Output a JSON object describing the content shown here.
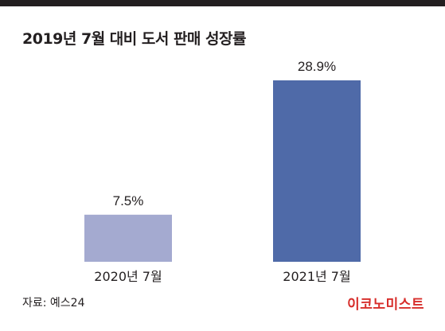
{
  "title": "2019년 7월 대비 도서 판매 성장률",
  "source": "자료: 예스24",
  "logo": "이코노미스트",
  "colors": {
    "bar_2020": "#a4aad0",
    "bar_2021": "#4f6aa8",
    "logo": "#d72e2b",
    "text": "#231f20"
  },
  "chart_data": {
    "type": "bar",
    "categories": [
      "2020년 7월",
      "2021년 7월"
    ],
    "values": [
      7.5,
      28.9
    ],
    "data_labels": [
      "7.5%",
      "28.9%"
    ],
    "title": "2019년 7월 대비 도서 판매 성장률",
    "xlabel": "",
    "ylabel": "",
    "ylim": [
      0,
      28.9
    ],
    "grid": false
  }
}
